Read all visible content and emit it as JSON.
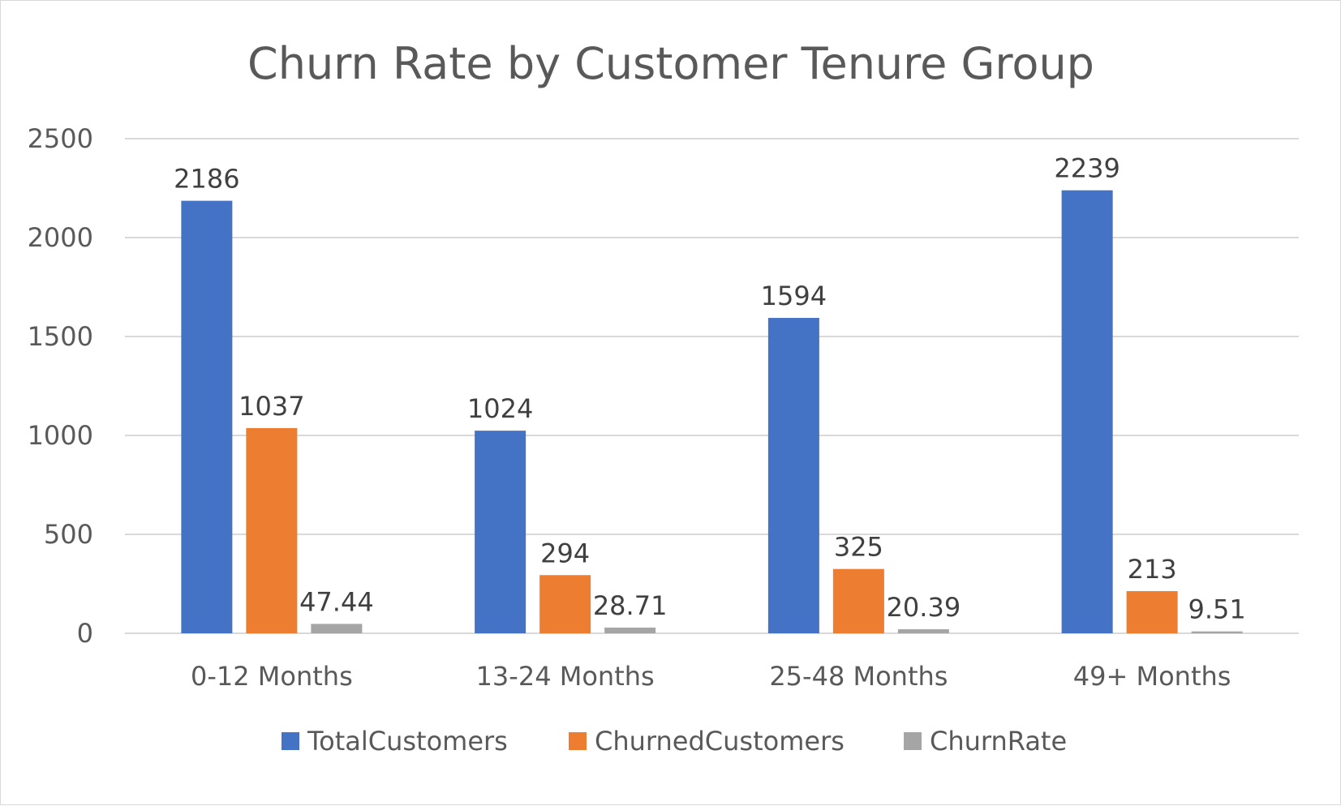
{
  "chart_data": {
    "type": "bar",
    "title": "Churn Rate by Customer Tenure Group",
    "xlabel": "",
    "ylabel": "",
    "categories": [
      "0-12 Months",
      "13-24 Months",
      "25-48 Months",
      "49+ Months"
    ],
    "series": [
      {
        "name": "TotalCustomers",
        "color": "#4472c4",
        "values": [
          2186,
          1024,
          1594,
          2239
        ],
        "labels": [
          "2186",
          "1024",
          "1594",
          "2239"
        ]
      },
      {
        "name": "ChurnedCustomers",
        "color": "#ed7d31",
        "values": [
          1037,
          294,
          325,
          213
        ],
        "labels": [
          "1037",
          "294",
          "325",
          "213"
        ]
      },
      {
        "name": "ChurnRate",
        "color": "#a5a5a5",
        "values": [
          47.44,
          28.71,
          20.39,
          9.51
        ],
        "labels": [
          "47.44",
          "28.71",
          "20.39",
          "9.51"
        ]
      }
    ],
    "ylim": [
      0,
      2500
    ],
    "yticks": [
      0,
      500,
      1000,
      1500,
      2000,
      2500
    ],
    "ytick_labels": [
      "0",
      "500",
      "1000",
      "1500",
      "2000",
      "2500"
    ],
    "grid": true,
    "legend_position": "bottom"
  }
}
